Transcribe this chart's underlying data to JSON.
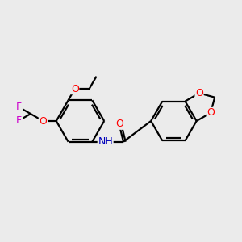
{
  "bg_color": "#ebebeb",
  "bond_color": "#000000",
  "bond_width": 1.6,
  "atom_colors": {
    "O": "#ff0000",
    "N": "#0000bb",
    "F": "#cc00cc",
    "C": "#000000"
  },
  "font_size": 9.0
}
